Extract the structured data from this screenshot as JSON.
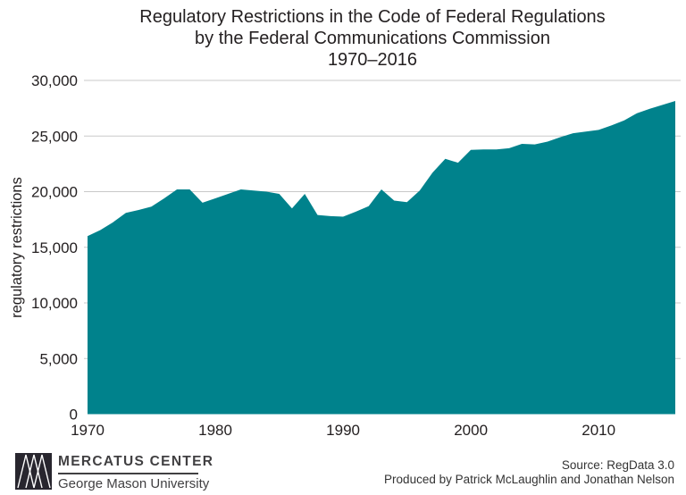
{
  "title": {
    "line1": "Regulatory Restrictions in the Code of Federal Regulations",
    "line2": "by the Federal Communications Commission",
    "line3": "1970–2016"
  },
  "chart_data": {
    "type": "area",
    "title": "Regulatory Restrictions in the Code of Federal Regulations by the Federal Communications Commission 1970–2016",
    "xlabel": "",
    "ylabel": "regulatory restrictions",
    "xlim": [
      1970,
      2016
    ],
    "ylim": [
      0,
      30000
    ],
    "grid": "horizontal gridlines at 5,000 intervals",
    "legend": "none",
    "x": [
      1970,
      1971,
      1972,
      1973,
      1974,
      1975,
      1976,
      1977,
      1978,
      1979,
      1980,
      1981,
      1982,
      1983,
      1984,
      1985,
      1986,
      1987,
      1988,
      1989,
      1990,
      1991,
      1992,
      1993,
      1994,
      1995,
      1996,
      1997,
      1998,
      1999,
      2000,
      2001,
      2002,
      2003,
      2004,
      2005,
      2006,
      2007,
      2008,
      2009,
      2010,
      2011,
      2012,
      2013,
      2014,
      2015,
      2016
    ],
    "values": [
      16000,
      16550,
      17250,
      18100,
      18350,
      18650,
      19400,
      20200,
      20200,
      19000,
      19400,
      19800,
      20200,
      20100,
      20000,
      19800,
      18500,
      19800,
      17900,
      17800,
      17750,
      18200,
      18700,
      20200,
      19200,
      19050,
      20100,
      21700,
      22950,
      22600,
      23750,
      23800,
      23800,
      23900,
      24300,
      24250,
      24500,
      24900,
      25250,
      25400,
      25550,
      25950,
      26400,
      27050,
      27450,
      27800,
      28150
    ],
    "y_ticks": [
      {
        "v": 0,
        "label": "0"
      },
      {
        "v": 5000,
        "label": "5,000"
      },
      {
        "v": 10000,
        "label": "10,000"
      },
      {
        "v": 15000,
        "label": "15,000"
      },
      {
        "v": 20000,
        "label": "20,000"
      },
      {
        "v": 25000,
        "label": "25,000"
      },
      {
        "v": 30000,
        "label": "30,000"
      }
    ],
    "x_ticks": [
      {
        "v": 1970,
        "label": "1970"
      },
      {
        "v": 1980,
        "label": "1980"
      },
      {
        "v": 1990,
        "label": "1990"
      },
      {
        "v": 2000,
        "label": "2000"
      },
      {
        "v": 2010,
        "label": "2010"
      }
    ],
    "colors": {
      "area": "#00828C",
      "grid": "#C9C9C9",
      "text": "#231F20"
    }
  },
  "footer": {
    "logo_line1": "MERCATUS CENTER",
    "logo_line2": "George Mason University",
    "source_line1": "Source: RegData 3.0",
    "source_line2": "Produced by Patrick McLaughlin and Jonathan Nelson"
  }
}
